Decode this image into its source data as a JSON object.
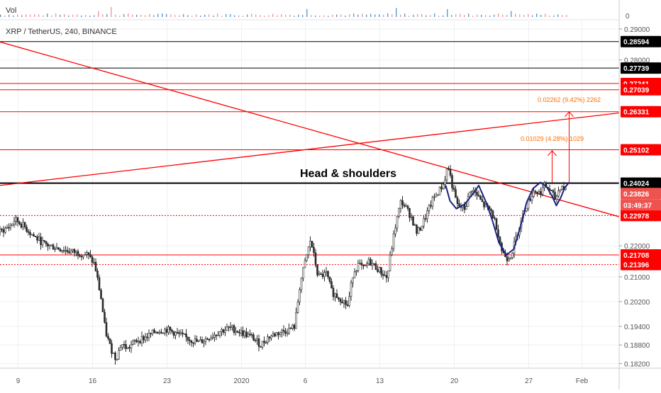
{
  "header": {
    "symbol_line": "XRP / TetherUS, 240, BINANCE",
    "vol_label": "Vol",
    "vol_tick": "0"
  },
  "colors": {
    "candle": "#2a2a2a",
    "resistance": "#ff0000",
    "key_level": "#000000",
    "pattern": "#1a237e",
    "target": "#ff6d00",
    "price_badge": "#ef5350"
  },
  "chart_data": {
    "type": "candlestick",
    "ylim": [
      0.1805,
      0.2925
    ],
    "y_ticks": [
      0.182,
      0.188,
      0.194,
      0.202,
      0.21,
      0.22,
      0.28,
      0.29
    ],
    "y_tick_labels": [
      "0.18200",
      "0.18800",
      "0.19400",
      "0.20200",
      "0.21000",
      "0.22000",
      "0.28000",
      "0.29000"
    ],
    "x_ticks": [
      {
        "day": 9,
        "label": "9"
      },
      {
        "day": 16,
        "label": "16"
      },
      {
        "day": 23,
        "label": "23"
      },
      {
        "day": 30,
        "label": "2020"
      },
      {
        "day": 36,
        "label": "6"
      },
      {
        "day": 43,
        "label": "13"
      },
      {
        "day": 50,
        "label": "20"
      },
      {
        "day": 57,
        "label": "27"
      },
      {
        "day": 62,
        "label": "Feb"
      }
    ],
    "x_range_days": [
      7.3,
      65.5
    ],
    "keypoints": [
      [
        7.3,
        0.2245
      ],
      [
        8.3,
        0.2265
      ],
      [
        8.7,
        0.2285
      ],
      [
        9.5,
        0.2265
      ],
      [
        10.5,
        0.223
      ],
      [
        11.5,
        0.2205
      ],
      [
        12.5,
        0.2195
      ],
      [
        13.5,
        0.2185
      ],
      [
        14.5,
        0.2178
      ],
      [
        15.5,
        0.2172
      ],
      [
        16.2,
        0.214
      ],
      [
        16.8,
        0.203
      ],
      [
        17.2,
        0.1925
      ],
      [
        17.7,
        0.187
      ],
      [
        18.2,
        0.1835
      ],
      [
        18.7,
        0.1885
      ],
      [
        19.3,
        0.1868
      ],
      [
        20.0,
        0.1892
      ],
      [
        21.0,
        0.1905
      ],
      [
        22.0,
        0.1925
      ],
      [
        23.0,
        0.193
      ],
      [
        24.0,
        0.1915
      ],
      [
        25.0,
        0.19
      ],
      [
        26.0,
        0.1888
      ],
      [
        27.0,
        0.1905
      ],
      [
        28.0,
        0.1925
      ],
      [
        29.0,
        0.1935
      ],
      [
        30.0,
        0.192
      ],
      [
        31.0,
        0.1905
      ],
      [
        31.8,
        0.188
      ],
      [
        32.5,
        0.1905
      ],
      [
        33.5,
        0.192
      ],
      [
        34.5,
        0.193
      ],
      [
        35.0,
        0.194
      ],
      [
        35.5,
        0.2075
      ],
      [
        36.0,
        0.215
      ],
      [
        36.5,
        0.222
      ],
      [
        37.2,
        0.21
      ],
      [
        38.0,
        0.211
      ],
      [
        38.5,
        0.205
      ],
      [
        39.5,
        0.2025
      ],
      [
        40.0,
        0.2005
      ],
      [
        40.5,
        0.2115
      ],
      [
        41.0,
        0.214
      ],
      [
        41.5,
        0.2125
      ],
      [
        42.0,
        0.215
      ],
      [
        43.0,
        0.212
      ],
      [
        43.7,
        0.2095
      ],
      [
        44.0,
        0.217
      ],
      [
        44.5,
        0.227
      ],
      [
        45.0,
        0.2345
      ],
      [
        45.5,
        0.232
      ],
      [
        46.0,
        0.229
      ],
      [
        46.5,
        0.224
      ],
      [
        47.0,
        0.227
      ],
      [
        48.0,
        0.235
      ],
      [
        49.0,
        0.24
      ],
      [
        49.4,
        0.246
      ],
      [
        49.9,
        0.238
      ],
      [
        50.3,
        0.233
      ],
      [
        51.0,
        0.232
      ],
      [
        51.6,
        0.2385
      ],
      [
        52.2,
        0.236
      ],
      [
        52.8,
        0.233
      ],
      [
        53.5,
        0.231
      ],
      [
        54.0,
        0.226
      ],
      [
        54.5,
        0.218
      ],
      [
        55.0,
        0.216
      ],
      [
        55.4,
        0.2175
      ],
      [
        56.0,
        0.225
      ],
      [
        56.5,
        0.231
      ],
      [
        57.0,
        0.2345
      ],
      [
        57.5,
        0.238
      ],
      [
        58.0,
        0.237
      ],
      [
        58.5,
        0.2395
      ],
      [
        59.0,
        0.238
      ],
      [
        59.5,
        0.235
      ],
      [
        60.0,
        0.2395
      ],
      [
        60.5,
        0.2382
      ]
    ],
    "vol_spikes": [
      {
        "day": 16.5,
        "v": 0.6
      },
      {
        "day": 17.8,
        "v": 1.0
      },
      {
        "day": 36.0,
        "v": 0.8
      },
      {
        "day": 44.6,
        "v": 0.9
      },
      {
        "day": 49.4,
        "v": 0.8
      },
      {
        "day": 55.2,
        "v": 0.6
      }
    ],
    "horizontal_levels": [
      {
        "value": 0.28594,
        "label": "0.28594",
        "kind": "key"
      },
      {
        "value": 0.27739,
        "label": "0.27739",
        "kind": "key"
      },
      {
        "value": 0.27241,
        "label": "0.27241",
        "kind": "resistance"
      },
      {
        "value": 0.27039,
        "label": "0.27039",
        "kind": "resistance"
      },
      {
        "value": 0.26331,
        "label": "0.26331",
        "kind": "resistance"
      },
      {
        "value": 0.25102,
        "label": "0.25102",
        "kind": "resistance"
      },
      {
        "value": 0.24024,
        "label": "0.24024",
        "kind": "key",
        "thick": true
      },
      {
        "value": 0.22978,
        "label": "0.22978",
        "kind": "resistance",
        "dotted": true
      },
      {
        "value": 0.21708,
        "label": "0.21708",
        "kind": "resistance"
      },
      {
        "value": 0.21396,
        "label": "0.21396",
        "kind": "resistance",
        "dotted": true
      }
    ],
    "last_price": {
      "value": 0.23826,
      "label": "0.23826",
      "countdown": "03:49:37"
    },
    "trendlines": [
      {
        "from": [
          7.3,
          0.2858
        ],
        "to": [
          65.5,
          0.2294
        ]
      },
      {
        "from": [
          7.3,
          0.2395
        ],
        "to": [
          65.5,
          0.2629
        ]
      }
    ],
    "pattern": {
      "label": "Head & shoulders",
      "text_anchor": [
        35.5,
        0.2422
      ],
      "path": [
        [
          49.2,
          0.2395
        ],
        [
          49.6,
          0.2345
        ],
        [
          50.2,
          0.232
        ],
        [
          51.0,
          0.2335
        ],
        [
          51.8,
          0.237
        ],
        [
          52.3,
          0.2395
        ],
        [
          53.0,
          0.234
        ],
        [
          53.6,
          0.228
        ],
        [
          54.2,
          0.221
        ],
        [
          54.9,
          0.217
        ],
        [
          55.6,
          0.219
        ],
        [
          56.2,
          0.226
        ],
        [
          56.8,
          0.234
        ],
        [
          57.4,
          0.2385
        ],
        [
          58.1,
          0.2405
        ],
        [
          58.7,
          0.239
        ],
        [
          59.2,
          0.236
        ],
        [
          59.6,
          0.233
        ],
        [
          60.0,
          0.2355
        ],
        [
          60.4,
          0.2388
        ],
        [
          60.8,
          0.2405
        ]
      ]
    },
    "targets": [
      {
        "from_day": 59.2,
        "base": 0.2405,
        "to": 0.2507,
        "text": "0.01029 (4.28%) 1029"
      },
      {
        "from_day": 60.8,
        "base": 0.2405,
        "to": 0.2633,
        "text": "0.02262 (9.42%) 2262"
      }
    ]
  }
}
